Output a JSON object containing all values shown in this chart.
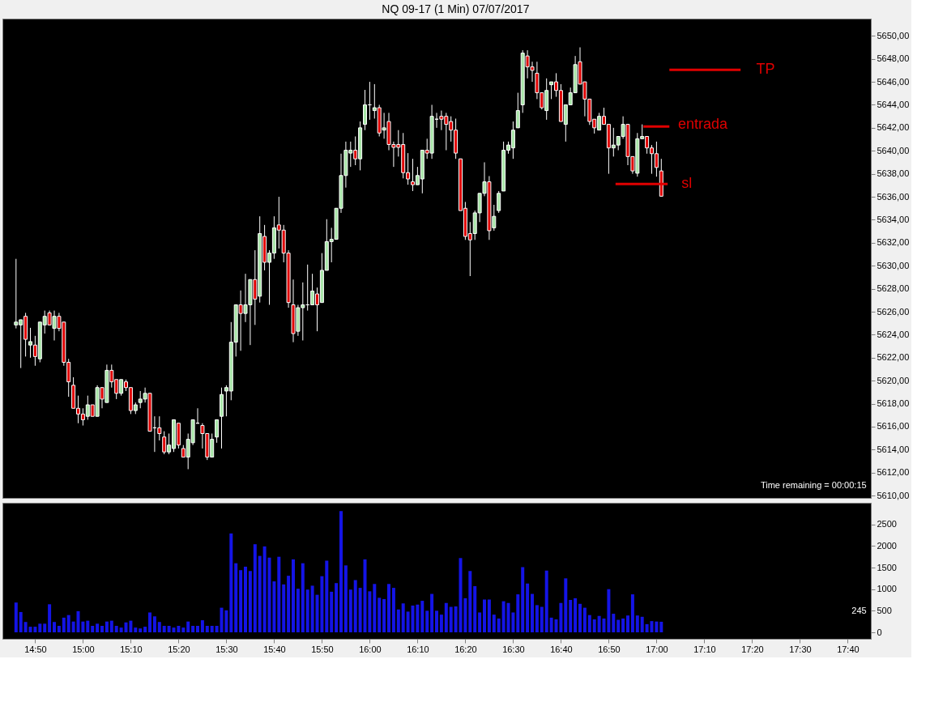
{
  "chart_data": [
    {
      "type": "candlestick",
      "title": "NQ 09-17 (1 Min)  07/07/2017",
      "x": [
        "2017-07-07T14:46",
        "2017-07-07T14:47",
        "2017-07-07T14:48",
        "2017-07-07T14:49",
        "2017-07-07T14:50",
        "2017-07-07T14:51",
        "2017-07-07T14:52",
        "2017-07-07T14:53",
        "2017-07-07T14:54",
        "2017-07-07T14:55",
        "2017-07-07T14:56",
        "2017-07-07T14:57",
        "2017-07-07T14:58",
        "2017-07-07T14:59",
        "2017-07-07T15:00",
        "2017-07-07T15:01",
        "2017-07-07T15:02",
        "2017-07-07T15:03",
        "2017-07-07T15:04",
        "2017-07-07T15:05",
        "2017-07-07T15:06",
        "2017-07-07T15:07",
        "2017-07-07T15:08",
        "2017-07-07T15:09",
        "2017-07-07T15:10",
        "2017-07-07T15:11",
        "2017-07-07T15:12",
        "2017-07-07T15:13",
        "2017-07-07T15:14",
        "2017-07-07T15:15",
        "2017-07-07T15:16",
        "2017-07-07T15:17",
        "2017-07-07T15:18",
        "2017-07-07T15:19",
        "2017-07-07T15:20",
        "2017-07-07T15:21",
        "2017-07-07T15:22",
        "2017-07-07T15:23",
        "2017-07-07T15:24",
        "2017-07-07T15:25",
        "2017-07-07T15:26",
        "2017-07-07T15:27",
        "2017-07-07T15:28",
        "2017-07-07T15:29",
        "2017-07-07T15:30",
        "2017-07-07T15:31",
        "2017-07-07T15:32",
        "2017-07-07T15:33",
        "2017-07-07T15:34",
        "2017-07-07T15:35",
        "2017-07-07T15:36",
        "2017-07-07T15:37",
        "2017-07-07T15:38",
        "2017-07-07T15:39",
        "2017-07-07T15:40",
        "2017-07-07T15:41",
        "2017-07-07T15:42",
        "2017-07-07T15:43",
        "2017-07-07T15:44",
        "2017-07-07T15:45",
        "2017-07-07T15:46",
        "2017-07-07T15:47",
        "2017-07-07T15:48",
        "2017-07-07T15:49",
        "2017-07-07T15:50",
        "2017-07-07T15:51",
        "2017-07-07T15:52",
        "2017-07-07T15:53",
        "2017-07-07T15:54",
        "2017-07-07T15:55",
        "2017-07-07T15:56",
        "2017-07-07T15:57",
        "2017-07-07T15:58",
        "2017-07-07T15:59",
        "2017-07-07T16:00",
        "2017-07-07T16:01",
        "2017-07-07T16:02",
        "2017-07-07T16:03",
        "2017-07-07T16:04",
        "2017-07-07T16:05",
        "2017-07-07T16:06",
        "2017-07-07T16:07",
        "2017-07-07T16:08",
        "2017-07-07T16:09",
        "2017-07-07T16:10",
        "2017-07-07T16:11",
        "2017-07-07T16:12",
        "2017-07-07T16:13",
        "2017-07-07T16:14",
        "2017-07-07T16:15",
        "2017-07-07T16:16",
        "2017-07-07T16:17",
        "2017-07-07T16:18",
        "2017-07-07T16:19",
        "2017-07-07T16:20",
        "2017-07-07T16:21",
        "2017-07-07T16:22",
        "2017-07-07T16:23",
        "2017-07-07T16:24",
        "2017-07-07T16:25",
        "2017-07-07T16:26",
        "2017-07-07T16:27",
        "2017-07-07T16:28",
        "2017-07-07T16:29",
        "2017-07-07T16:30",
        "2017-07-07T16:31",
        "2017-07-07T16:32",
        "2017-07-07T16:33",
        "2017-07-07T16:34",
        "2017-07-07T16:35",
        "2017-07-07T16:36",
        "2017-07-07T16:37",
        "2017-07-07T16:38",
        "2017-07-07T16:39",
        "2017-07-07T16:40",
        "2017-07-07T16:41",
        "2017-07-07T16:42",
        "2017-07-07T16:43",
        "2017-07-07T16:44",
        "2017-07-07T16:45",
        "2017-07-07T16:46",
        "2017-07-07T16:47",
        "2017-07-07T16:48",
        "2017-07-07T16:49",
        "2017-07-07T16:50",
        "2017-07-07T16:51",
        "2017-07-07T16:52",
        "2017-07-07T16:53",
        "2017-07-07T16:54",
        "2017-07-07T16:55",
        "2017-07-07T16:56",
        "2017-07-07T16:57",
        "2017-07-07T16:58",
        "2017-07-07T16:59",
        "2017-07-07T17:00",
        "2017-07-07T17:01"
      ],
      "ohlc": [
        [
          5624.85,
          5630.6,
          5624.55,
          5625.1
        ],
        [
          5624.85,
          5625.3,
          5621.1,
          5625.3
        ],
        [
          5625.6,
          5625.9,
          5622.1,
          5623.6
        ],
        [
          5623.1,
          5624.6,
          5622.0,
          5623.4
        ],
        [
          5623.1,
          5623.9,
          5621.3,
          5622.1
        ],
        [
          5621.9,
          5625.1,
          5621.6,
          5625.1
        ],
        [
          5624.85,
          5626.1,
          5624.1,
          5625.6
        ],
        [
          5625.9,
          5626.1,
          5624.85,
          5624.85
        ],
        [
          5624.55,
          5626.1,
          5623.5,
          5625.6
        ],
        [
          5625.6,
          5625.9,
          5624.3,
          5624.55
        ],
        [
          5625.1,
          5625.1,
          5621.3,
          5621.6
        ],
        [
          5621.6,
          5621.9,
          5618.6,
          5619.9
        ],
        [
          5619.6,
          5620.3,
          5617.6,
          5617.6
        ],
        [
          5617.6,
          5618.7,
          5616.3,
          5617.1
        ],
        [
          5617.1,
          5617.6,
          5616.1,
          5616.6
        ],
        [
          5616.9,
          5618.7,
          5616.6,
          5617.9
        ],
        [
          5617.9,
          5617.9,
          5616.9,
          5616.9
        ],
        [
          5616.9,
          5619.6,
          5616.9,
          5619.4
        ],
        [
          5619.4,
          5619.4,
          5617.6,
          5618.4
        ],
        [
          5618.1,
          5621.4,
          5618.1,
          5620.9
        ],
        [
          5620.9,
          5621.4,
          5619.4,
          5619.9
        ],
        [
          5620.1,
          5620.1,
          5618.4,
          5618.9
        ],
        [
          5618.9,
          5620.1,
          5618.7,
          5620.1
        ],
        [
          5619.9,
          5620.1,
          5619.1,
          5619.4
        ],
        [
          5619.4,
          5619.4,
          5617.1,
          5617.4
        ],
        [
          5617.4,
          5618.1,
          5617.1,
          5617.9
        ],
        [
          5618.1,
          5619.1,
          5617.6,
          5618.4
        ],
        [
          5618.4,
          5619.4,
          5618.1,
          5618.9
        ],
        [
          5618.9,
          5618.9,
          5615.6,
          5615.6
        ],
        [
          5615.9,
          5616.9,
          5613.8,
          5615.9
        ],
        [
          5615.9,
          5616.9,
          5614.8,
          5615.4
        ],
        [
          5615.1,
          5615.6,
          5613.6,
          5613.8
        ],
        [
          5613.8,
          5615.4,
          5613.6,
          5614.4
        ],
        [
          5614.1,
          5616.6,
          5613.8,
          5616.6
        ],
        [
          5616.3,
          5616.3,
          5614.1,
          5614.4
        ],
        [
          5614.1,
          5614.4,
          5613.35,
          5613.35
        ],
        [
          5613.35,
          5615.4,
          5612.3,
          5614.9
        ],
        [
          5614.6,
          5616.6,
          5614.4,
          5616.6
        ],
        [
          5616.3,
          5617.6,
          5616.3,
          5616.3
        ],
        [
          5616.1,
          5616.3,
          5614.1,
          5615.4
        ],
        [
          5615.4,
          5615.4,
          5613.1,
          5613.35
        ],
        [
          5613.35,
          5615.4,
          5613.35,
          5614.9
        ],
        [
          5615.1,
          5616.6,
          5614.6,
          5616.6
        ],
        [
          5616.9,
          5619.4,
          5614.1,
          5618.8
        ],
        [
          5619.1,
          5619.6,
          5616.9,
          5619.4
        ],
        [
          5619.1,
          5625.1,
          5618.3,
          5623.35
        ],
        [
          5623.35,
          5626.6,
          5622.1,
          5626.6
        ],
        [
          5626.6,
          5627.85,
          5622.6,
          5625.85
        ],
        [
          5625.85,
          5629.3,
          5625.1,
          5626.6
        ],
        [
          5626.6,
          5628.8,
          5623.1,
          5628.8
        ],
        [
          5628.8,
          5631.35,
          5624.85,
          5627.1
        ],
        [
          5627.35,
          5634.3,
          5626.8,
          5632.8
        ],
        [
          5632.55,
          5633.55,
          5629.6,
          5630.3
        ],
        [
          5630.3,
          5631.35,
          5626.6,
          5631.1
        ],
        [
          5631.1,
          5634.3,
          5630.6,
          5633.3
        ],
        [
          5633.55,
          5636.0,
          5631.5,
          5633.1
        ],
        [
          5633.1,
          5633.55,
          5630.3,
          5631.1
        ],
        [
          5631.1,
          5631.35,
          5626.35,
          5626.8
        ],
        [
          5626.6,
          5628.8,
          5623.35,
          5624.1
        ],
        [
          5624.3,
          5626.6,
          5623.9,
          5626.35
        ],
        [
          5626.35,
          5628.55,
          5623.5,
          5626.6
        ],
        [
          5626.6,
          5630.1,
          5626.1,
          5626.6
        ],
        [
          5626.6,
          5629.3,
          5626.6,
          5627.8
        ],
        [
          5627.55,
          5628.1,
          5624.3,
          5626.6
        ],
        [
          5626.8,
          5631.1,
          5626.8,
          5629.6
        ],
        [
          5629.6,
          5634.05,
          5629.6,
          5632.1
        ],
        [
          5632.1,
          5633.3,
          5630.3,
          5632.3
        ],
        [
          5632.3,
          5635.0,
          5632.3,
          5635.0
        ],
        [
          5635.0,
          5639.75,
          5634.6,
          5637.85
        ],
        [
          5637.85,
          5640.8,
          5636.8,
          5640.05
        ],
        [
          5639.8,
          5640.8,
          5638.6,
          5640.05
        ],
        [
          5640.05,
          5641.25,
          5638.75,
          5639.3
        ],
        [
          5639.3,
          5642.55,
          5638.3,
          5642.0
        ],
        [
          5642.3,
          5645.3,
          5641.8,
          5644.0
        ],
        [
          5644.0,
          5646.0,
          5642.7,
          5644.0
        ],
        [
          5643.5,
          5645.8,
          5642.8,
          5643.75
        ],
        [
          5643.75,
          5644.0,
          5641.25,
          5641.55
        ],
        [
          5641.8,
          5643.3,
          5641.05,
          5642.0
        ],
        [
          5642.55,
          5643.3,
          5640.05,
          5640.55
        ],
        [
          5640.55,
          5640.8,
          5638.6,
          5640.3
        ],
        [
          5640.55,
          5641.8,
          5639.5,
          5640.3
        ],
        [
          5640.55,
          5641.55,
          5637.6,
          5638.1
        ],
        [
          5638.1,
          5639.8,
          5637.05,
          5637.55
        ],
        [
          5637.3,
          5639.3,
          5636.5,
          5637.05
        ],
        [
          5637.05,
          5638.6,
          5637.05,
          5637.85
        ],
        [
          5637.55,
          5640.05,
          5636.3,
          5640.05
        ],
        [
          5640.05,
          5641.05,
          5639.3,
          5639.8
        ],
        [
          5639.8,
          5644.0,
          5639.3,
          5643.0
        ],
        [
          5642.75,
          5643.3,
          5642.0,
          5642.75
        ],
        [
          5643.0,
          5643.5,
          5641.8,
          5642.75
        ],
        [
          5643.0,
          5643.3,
          5640.05,
          5642.3
        ],
        [
          5642.55,
          5643.0,
          5640.8,
          5641.8
        ],
        [
          5641.8,
          5642.8,
          5639.3,
          5639.8
        ],
        [
          5639.3,
          5639.3,
          5634.8,
          5634.8
        ],
        [
          5635.0,
          5635.55,
          5632.25,
          5632.55
        ],
        [
          5632.8,
          5633.8,
          5629.1,
          5632.25
        ],
        [
          5632.8,
          5634.8,
          5632.25,
          5634.6
        ],
        [
          5634.6,
          5636.3,
          5633.8,
          5636.3
        ],
        [
          5636.3,
          5639.0,
          5636.05,
          5637.3
        ],
        [
          5637.3,
          5637.8,
          5632.25,
          5633.05
        ],
        [
          5633.3,
          5635.3,
          5633.05,
          5634.3
        ],
        [
          5634.8,
          5636.5,
          5634.6,
          5636.3
        ],
        [
          5636.5,
          5640.8,
          5636.5,
          5640.05
        ],
        [
          5640.05,
          5640.8,
          5639.75,
          5640.5
        ],
        [
          5640.25,
          5642.55,
          5639.3,
          5641.8
        ],
        [
          5642.0,
          5645.05,
          5642.0,
          5643.5
        ],
        [
          5644.0,
          5648.75,
          5643.3,
          5648.5
        ],
        [
          5648.25,
          5648.75,
          5646.3,
          5647.3
        ],
        [
          5647.3,
          5647.75,
          5646.0,
          5647.0
        ],
        [
          5646.75,
          5647.75,
          5644.5,
          5645.05
        ],
        [
          5645.05,
          5645.05,
          5643.6,
          5643.75
        ],
        [
          5643.5,
          5646.3,
          5642.7,
          5645.25
        ],
        [
          5645.75,
          5646.0,
          5644.5,
          5646.0
        ],
        [
          5646.0,
          5646.75,
          5644.7,
          5645.25
        ],
        [
          5645.25,
          5645.8,
          5642.55,
          5642.55
        ],
        [
          5642.3,
          5644.0,
          5640.8,
          5644.0
        ],
        [
          5644.0,
          5645.5,
          5644.0,
          5645.05
        ],
        [
          5645.05,
          5648.25,
          5645.05,
          5647.5
        ],
        [
          5647.75,
          5649.0,
          5645.8,
          5645.8
        ],
        [
          5646.0,
          5646.0,
          5643.0,
          5644.5
        ],
        [
          5644.5,
          5644.5,
          5642.25,
          5642.55
        ],
        [
          5642.75,
          5642.75,
          5641.5,
          5642.0
        ],
        [
          5641.8,
          5643.3,
          5641.8,
          5643.0
        ],
        [
          5643.0,
          5643.75,
          5642.3,
          5642.3
        ],
        [
          5642.3,
          5642.3,
          5638.0,
          5640.25
        ],
        [
          5640.25,
          5642.0,
          5639.5,
          5640.5
        ],
        [
          5640.5,
          5641.25,
          5640.05,
          5641.25
        ],
        [
          5641.25,
          5643.0,
          5641.05,
          5642.3
        ],
        [
          5642.3,
          5642.3,
          5638.75,
          5639.5
        ],
        [
          5639.5,
          5639.5,
          5638.0,
          5638.25
        ],
        [
          5638.05,
          5641.55,
          5637.75,
          5641.05
        ],
        [
          5641.05,
          5642.3,
          5641.05,
          5641.25
        ],
        [
          5641.25,
          5641.25,
          5639.75,
          5640.25
        ],
        [
          5640.25,
          5640.5,
          5638.0,
          5639.75
        ],
        [
          5639.75,
          5640.8,
          5637.75,
          5638.55
        ],
        [
          5638.25,
          5639.3,
          5636.05,
          5636.05
        ]
      ],
      "xlim": [
        "2017-07-07T14:44",
        "2017-07-07T17:44"
      ],
      "ylim": [
        5609.8,
        5651.5
      ],
      "yticks": [
        {
          "value": 5610,
          "label": "5610,00"
        },
        {
          "value": 5612,
          "label": "5612,00"
        },
        {
          "value": 5614,
          "label": "5614,00"
        },
        {
          "value": 5616,
          "label": "5616,00"
        },
        {
          "value": 5618,
          "label": "5618,00"
        },
        {
          "value": 5620,
          "label": "5620,00"
        },
        {
          "value": 5622,
          "label": "5622,00"
        },
        {
          "value": 5624,
          "label": "5624,00"
        },
        {
          "value": 5626,
          "label": "5626,00"
        },
        {
          "value": 5628,
          "label": "5628,00"
        },
        {
          "value": 5630,
          "label": "5630,00"
        },
        {
          "value": 5632,
          "label": "5632,00"
        },
        {
          "value": 5634,
          "label": "5634,00"
        },
        {
          "value": 5636,
          "label": "5636,00"
        },
        {
          "value": 5638,
          "label": "5638,00"
        },
        {
          "value": 5640,
          "label": "5640,00"
        },
        {
          "value": 5642,
          "label": "5642,00"
        },
        {
          "value": 5644,
          "label": "5644,00"
        },
        {
          "value": 5646,
          "label": "5646,00"
        },
        {
          "value": 5648,
          "label": "5648,00"
        },
        {
          "value": 5650,
          "label": "5650,00"
        }
      ],
      "tick_labels": "y",
      "annotations": [
        "TP",
        "entrada",
        "sl",
        "Time remaining = 00:00:15"
      ]
    },
    {
      "type": "bar",
      "color": "#1414e6",
      "x": [
        "2017-07-07T14:46",
        "2017-07-07T14:47",
        "2017-07-07T14:48",
        "2017-07-07T14:49",
        "2017-07-07T14:50",
        "2017-07-07T14:51",
        "2017-07-07T14:52",
        "2017-07-07T14:53",
        "2017-07-07T14:54",
        "2017-07-07T14:55",
        "2017-07-07T14:56",
        "2017-07-07T14:57",
        "2017-07-07T14:58",
        "2017-07-07T14:59",
        "2017-07-07T15:00",
        "2017-07-07T15:01",
        "2017-07-07T15:02",
        "2017-07-07T15:03",
        "2017-07-07T15:04",
        "2017-07-07T15:05",
        "2017-07-07T15:06",
        "2017-07-07T15:07",
        "2017-07-07T15:08",
        "2017-07-07T15:09",
        "2017-07-07T15:10",
        "2017-07-07T15:11",
        "2017-07-07T15:12",
        "2017-07-07T15:13",
        "2017-07-07T15:14",
        "2017-07-07T15:15",
        "2017-07-07T15:16",
        "2017-07-07T15:17",
        "2017-07-07T15:18",
        "2017-07-07T15:19",
        "2017-07-07T15:20",
        "2017-07-07T15:21",
        "2017-07-07T15:22",
        "2017-07-07T15:23",
        "2017-07-07T15:24",
        "2017-07-07T15:25",
        "2017-07-07T15:26",
        "2017-07-07T15:27",
        "2017-07-07T15:28",
        "2017-07-07T15:29",
        "2017-07-07T15:30",
        "2017-07-07T15:31",
        "2017-07-07T15:32",
        "2017-07-07T15:33",
        "2017-07-07T15:34",
        "2017-07-07T15:35",
        "2017-07-07T15:36",
        "2017-07-07T15:37",
        "2017-07-07T15:38",
        "2017-07-07T15:39",
        "2017-07-07T15:40",
        "2017-07-07T15:41",
        "2017-07-07T15:42",
        "2017-07-07T15:43",
        "2017-07-07T15:44",
        "2017-07-07T15:45",
        "2017-07-07T15:46",
        "2017-07-07T15:47",
        "2017-07-07T15:48",
        "2017-07-07T15:49",
        "2017-07-07T15:50",
        "2017-07-07T15:51",
        "2017-07-07T15:52",
        "2017-07-07T15:53",
        "2017-07-07T15:54",
        "2017-07-07T15:55",
        "2017-07-07T15:56",
        "2017-07-07T15:57",
        "2017-07-07T15:58",
        "2017-07-07T15:59",
        "2017-07-07T16:00",
        "2017-07-07T16:01",
        "2017-07-07T16:02",
        "2017-07-07T16:03",
        "2017-07-07T16:04",
        "2017-07-07T16:05",
        "2017-07-07T16:06",
        "2017-07-07T16:07",
        "2017-07-07T16:08",
        "2017-07-07T16:09",
        "2017-07-07T16:10",
        "2017-07-07T16:11",
        "2017-07-07T16:12",
        "2017-07-07T16:13",
        "2017-07-07T16:14",
        "2017-07-07T16:15",
        "2017-07-07T16:16",
        "2017-07-07T16:17",
        "2017-07-07T16:18",
        "2017-07-07T16:19",
        "2017-07-07T16:20",
        "2017-07-07T16:21",
        "2017-07-07T16:22",
        "2017-07-07T16:23",
        "2017-07-07T16:24",
        "2017-07-07T16:25",
        "2017-07-07T16:26",
        "2017-07-07T16:27",
        "2017-07-07T16:28",
        "2017-07-07T16:29",
        "2017-07-07T16:30",
        "2017-07-07T16:31",
        "2017-07-07T16:32",
        "2017-07-07T16:33",
        "2017-07-07T16:34",
        "2017-07-07T16:35",
        "2017-07-07T16:36",
        "2017-07-07T16:37",
        "2017-07-07T16:38",
        "2017-07-07T16:39",
        "2017-07-07T16:40",
        "2017-07-07T16:41",
        "2017-07-07T16:42",
        "2017-07-07T16:43",
        "2017-07-07T16:44",
        "2017-07-07T16:45",
        "2017-07-07T16:46",
        "2017-07-07T16:47",
        "2017-07-07T16:48",
        "2017-07-07T16:49",
        "2017-07-07T16:50",
        "2017-07-07T16:51",
        "2017-07-07T16:52",
        "2017-07-07T16:53",
        "2017-07-07T16:54",
        "2017-07-07T16:55",
        "2017-07-07T16:56",
        "2017-07-07T16:57",
        "2017-07-07T16:58",
        "2017-07-07T16:59",
        "2017-07-07T17:00",
        "2017-07-07T17:01"
      ],
      "values": [
        690,
        470,
        240,
        130,
        130,
        200,
        200,
        650,
        240,
        150,
        340,
        400,
        250,
        490,
        250,
        270,
        150,
        200,
        150,
        250,
        270,
        150,
        110,
        230,
        270,
        110,
        90,
        130,
        460,
        370,
        240,
        150,
        150,
        110,
        150,
        110,
        250,
        150,
        150,
        280,
        150,
        150,
        150,
        570,
        510,
        2290,
        1600,
        1440,
        1520,
        1420,
        2040,
        1770,
        1990,
        1730,
        1180,
        1750,
        1110,
        1310,
        1690,
        1010,
        1600,
        990,
        1080,
        870,
        1300,
        1660,
        940,
        1140,
        2810,
        1550,
        990,
        1210,
        1030,
        1690,
        950,
        1120,
        800,
        770,
        1120,
        1030,
        530,
        670,
        480,
        620,
        640,
        730,
        500,
        890,
        500,
        410,
        680,
        590,
        600,
        1720,
        790,
        1420,
        1070,
        460,
        760,
        760,
        410,
        320,
        720,
        680,
        460,
        880,
        1510,
        1130,
        890,
        630,
        590,
        1430,
        340,
        300,
        680,
        1250,
        750,
        790,
        660,
        570,
        400,
        300,
        380,
        320,
        1000,
        430,
        290,
        320,
        390,
        880,
        390,
        360,
        190,
        260,
        250,
        245
      ],
      "xlim": [
        "2017-07-07T14:44",
        "2017-07-07T17:44"
      ],
      "xticks": [
        {
          "value": "2017-07-07T14:50",
          "label": "14:50"
        },
        {
          "value": "2017-07-07T15:00",
          "label": "15:00"
        },
        {
          "value": "2017-07-07T15:10",
          "label": "15:10"
        },
        {
          "value": "2017-07-07T15:20",
          "label": "15:20"
        },
        {
          "value": "2017-07-07T15:30",
          "label": "15:30"
        },
        {
          "value": "2017-07-07T15:40",
          "label": "15:40"
        },
        {
          "value": "2017-07-07T15:50",
          "label": "15:50"
        },
        {
          "value": "2017-07-07T16:00",
          "label": "16:00"
        },
        {
          "value": "2017-07-07T16:10",
          "label": "16:10"
        },
        {
          "value": "2017-07-07T16:20",
          "label": "16:20"
        },
        {
          "value": "2017-07-07T16:30",
          "label": "16:30"
        },
        {
          "value": "2017-07-07T16:40",
          "label": "16:40"
        },
        {
          "value": "2017-07-07T16:50",
          "label": "16:50"
        },
        {
          "value": "2017-07-07T17:00",
          "label": "17:00"
        },
        {
          "value": "2017-07-07T17:10",
          "label": "17:10"
        },
        {
          "value": "2017-07-07T17:20",
          "label": "17:20"
        },
        {
          "value": "2017-07-07T17:30",
          "label": "17:30"
        },
        {
          "value": "2017-07-07T17:40",
          "label": "17:40"
        }
      ],
      "ylim": [
        -150,
        3000
      ],
      "yticks": [
        0,
        500,
        1000,
        1500,
        2000,
        2500
      ],
      "annotations": [
        "245"
      ]
    }
  ]
}
